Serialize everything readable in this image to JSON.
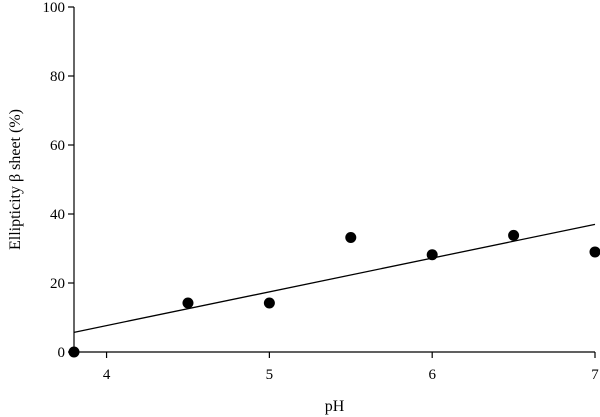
{
  "chart_data": {
    "type": "scatter",
    "title": "",
    "xlabel": "pH",
    "ylabel": "Ellipticity β sheet (%)",
    "xlim": [
      3.8,
      7.0
    ],
    "ylim": [
      0,
      100
    ],
    "x_ticks": [
      4,
      5,
      6,
      7
    ],
    "y_ticks": [
      0,
      20,
      40,
      60,
      80,
      100
    ],
    "grid": false,
    "series": [
      {
        "type": "scatter",
        "points": [
          {
            "x": 3.8,
            "y": 0
          },
          {
            "x": 4.5,
            "y": 14.2
          },
          {
            "x": 5.0,
            "y": 14.2
          },
          {
            "x": 5.5,
            "y": 33.2
          },
          {
            "x": 6.0,
            "y": 28.2
          },
          {
            "x": 6.5,
            "y": 33.8
          },
          {
            "x": 7.0,
            "y": 29.0
          }
        ]
      },
      {
        "type": "line",
        "points": [
          {
            "x": 3.8,
            "y": 5.7
          },
          {
            "x": 7.0,
            "y": 37.0
          }
        ]
      }
    ],
    "colors": {
      "marker": "#000000",
      "line": "#000000",
      "axis": "#000000"
    }
  }
}
